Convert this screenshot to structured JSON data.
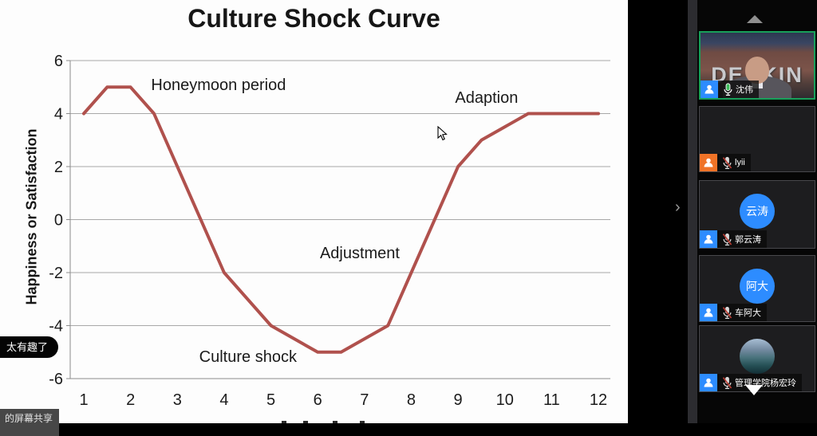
{
  "chart_data": {
    "type": "line",
    "title": "Culture Shock Curve",
    "xlabel": "",
    "ylabel": "Happiness or Satisfaction",
    "xlim": [
      1,
      12
    ],
    "ylim": [
      -6,
      6
    ],
    "grid": true,
    "x_ticks": [
      1,
      2,
      3,
      4,
      5,
      6,
      7,
      8,
      9,
      10,
      11,
      12
    ],
    "y_ticks": [
      6,
      4,
      2,
      0,
      -2,
      -4,
      -6
    ],
    "line_color": "#b0514d",
    "grid_color": "#a8a8a8",
    "axis_color": "#8c8c8c",
    "series": [
      {
        "name": "culture-shock-curve",
        "points": [
          [
            1,
            4
          ],
          [
            1.5,
            5
          ],
          [
            2,
            5
          ],
          [
            2.5,
            4
          ],
          [
            4,
            -2
          ],
          [
            5,
            -4
          ],
          [
            6,
            -5
          ],
          [
            6.5,
            -5
          ],
          [
            7.5,
            -4
          ],
          [
            9,
            2
          ],
          [
            9.5,
            3
          ],
          [
            10.5,
            4
          ],
          [
            12,
            4
          ]
        ]
      }
    ],
    "annotations": [
      {
        "text": "Honeymoon period",
        "x": 3.88,
        "y": 5.1
      },
      {
        "text": "Adaption",
        "x": 9.61,
        "y": 4.62
      },
      {
        "text": "Adjustment",
        "x": 6.9,
        "y": -1.25
      },
      {
        "text": "Culture shock",
        "x": 4.51,
        "y": -5.16
      }
    ]
  },
  "overlays": {
    "chat_bubble": "太有趣了",
    "share_label": "的屏幕共享"
  },
  "sidebar": {
    "accent_green": "#18a05a",
    "badge_blue": "#2d8cff",
    "badge_orange": "#f07327",
    "participants": [
      {
        "name": "沈伟",
        "mic": "on",
        "badge_color": "#2d8cff",
        "kind": "video",
        "video_overlay_text": "DEAKIN",
        "active": true
      },
      {
        "name": "lyii",
        "mic": "muted",
        "badge_color": "#f07327",
        "kind": "photo-temple"
      },
      {
        "name": "郭云涛",
        "mic": "muted",
        "badge_color": "#2d8cff",
        "kind": "initials",
        "avatar_text": "云涛"
      },
      {
        "name": "车阿大",
        "mic": "muted",
        "badge_color": "#2d8cff",
        "kind": "initials",
        "avatar_text": "阿大"
      },
      {
        "name": "管理学院杨宏玲",
        "mic": "muted",
        "badge_color": "#2d8cff",
        "kind": "photo-landscape"
      }
    ]
  }
}
